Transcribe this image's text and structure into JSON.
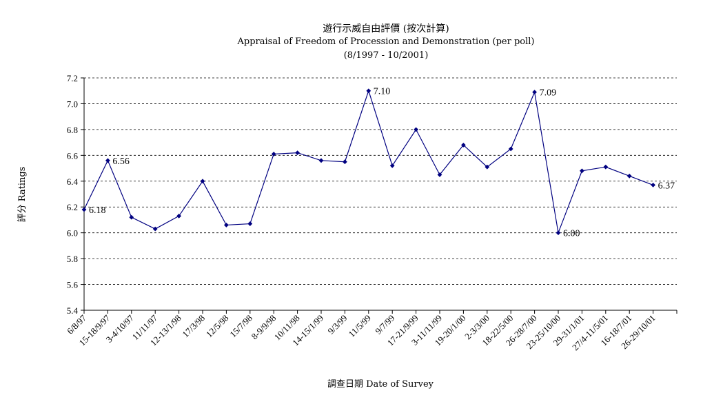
{
  "chart_data": {
    "type": "line",
    "title": "遊行示威自由評價 (按次計算)",
    "subtitle": "Appraisal of Freedom of Procession and Demonstration (per poll)",
    "period": "(8/1997 - 10/2001)",
    "xlabel": "調查日期 Date of Survey",
    "ylabel": "評分 Ratings",
    "ylim": [
      5.4,
      7.2
    ],
    "y_ticks": [
      "7.2",
      "7.0",
      "6.8",
      "6.6",
      "6.4",
      "6.2",
      "6.0",
      "5.8",
      "5.6",
      "5.4"
    ],
    "grid": true,
    "color": "#000080",
    "categories": [
      "6/8/97",
      "15-18/9/97",
      "3-4/10/97",
      "11/11/97",
      "12-13/1/98",
      "17/3/98",
      "12/5/98",
      "15/7/98",
      "8-9/9/98",
      "10/11/98",
      "14-15/1/99",
      "9/3/99",
      "11/5/99",
      "9/7/99",
      "17-21/9/99",
      "3-11/11/99",
      "19-20/1/00",
      "2-3/3/00",
      "18-22/5/00",
      "26-28/7/00",
      "23-25/10/00",
      "29-31/1/01",
      "27/4-11/5/01",
      "16-18/7/01",
      "26-29/10/01"
    ],
    "values": [
      6.18,
      6.56,
      6.12,
      6.03,
      6.13,
      6.4,
      6.06,
      6.07,
      6.61,
      6.62,
      6.56,
      6.55,
      7.1,
      6.52,
      6.8,
      6.45,
      6.68,
      6.51,
      6.65,
      7.09,
      6.0,
      6.48,
      6.51,
      6.44,
      6.37
    ],
    "data_labels": [
      {
        "index": 0,
        "text": "6.18"
      },
      {
        "index": 1,
        "text": "6.56"
      },
      {
        "index": 12,
        "text": "7.10"
      },
      {
        "index": 19,
        "text": "7.09"
      },
      {
        "index": 20,
        "text": "6.00"
      },
      {
        "index": 24,
        "text": "6.37"
      }
    ]
  }
}
